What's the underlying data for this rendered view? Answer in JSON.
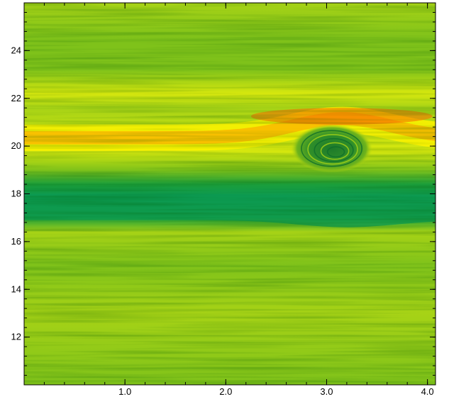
{
  "chart_data": {
    "type": "heatmap",
    "title": "",
    "xlabel": "",
    "ylabel": "",
    "xlim": [
      0.0,
      4.08
    ],
    "ylim": [
      10.0,
      26.0
    ],
    "x_ticks": [
      {
        "value": 1.0,
        "label": "1.0"
      },
      {
        "value": 2.0,
        "label": "2.0"
      },
      {
        "value": 3.0,
        "label": "3.0"
      },
      {
        "value": 4.0,
        "label": "4.0"
      }
    ],
    "y_ticks": [
      {
        "value": 12,
        "label": "12"
      },
      {
        "value": 14,
        "label": "14"
      },
      {
        "value": 16,
        "label": "16"
      },
      {
        "value": 18,
        "label": "18"
      },
      {
        "value": 20,
        "label": "20"
      },
      {
        "value": 22,
        "label": "22"
      },
      {
        "value": 24,
        "label": "24"
      }
    ],
    "minor_ticks_per_major": 5,
    "colormap": [
      "#0c9a52",
      "#1b9e3a",
      "#4caf25",
      "#7fc21a",
      "#a7d316",
      "#d7e80e",
      "#fbf200",
      "#fbb200",
      "#f56a00"
    ],
    "features": {
      "high_band": {
        "y_center_left": 20.35,
        "y_center_peak": 21.1,
        "x_peak": 3.15,
        "half_width": 0.55
      },
      "low_band": {
        "y_center": 17.45,
        "half_width": 0.55
      },
      "vortex": {
        "x": 3.05,
        "y": 19.9,
        "rx": 0.3,
        "ry": 0.75
      }
    },
    "grid": false
  }
}
